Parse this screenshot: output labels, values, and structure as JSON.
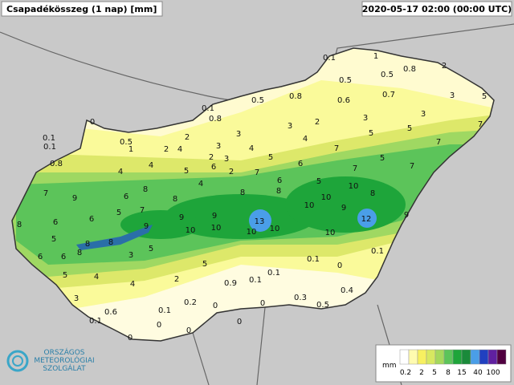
{
  "header": {
    "title": "Csapadékösszeg (1 nap) [mm]",
    "timestamp": "2020-05-17 02:00 (00:00 UTC)"
  },
  "stations": [
    0.1,
    1,
    2,
    0.8,
    0.5,
    0.5,
    0.7,
    0.5,
    0.8,
    0.6,
    3,
    5,
    0.1,
    0.8,
    3,
    3,
    3,
    2,
    7,
    0,
    3,
    2,
    5,
    5,
    0.1,
    0.1,
    0.5,
    1,
    2,
    4,
    3,
    4,
    4,
    7,
    7,
    5,
    0.8,
    4,
    2,
    3,
    5,
    6,
    2,
    5,
    7,
    7,
    6,
    7,
    4,
    4,
    6,
    5,
    7,
    9,
    8,
    6,
    8,
    8,
    8,
    10,
    8,
    6,
    5,
    7,
    6,
    9,
    9,
    9,
    10,
    10,
    9,
    9,
    10,
    10,
    10,
    10,
    13,
    12,
    10,
    8,
    8,
    8,
    8,
    5,
    3,
    5,
    6,
    6,
    0.1,
    5,
    0.1,
    0,
    5,
    4,
    4,
    2,
    0.9,
    0.1,
    0.1,
    0.4,
    3,
    0.2,
    0,
    0,
    0.3,
    0.5,
    0.1,
    0.6,
    0.1,
    0,
    0,
    0,
    0
  ],
  "legend": {
    "unit": "mm",
    "labels": [
      0.2,
      2,
      5,
      8,
      15,
      40,
      100
    ]
  },
  "logo": {
    "lines": [
      "ORSZÁGOS",
      "METEOROLÓGIAI",
      "SZOLGÁLAT"
    ]
  }
}
